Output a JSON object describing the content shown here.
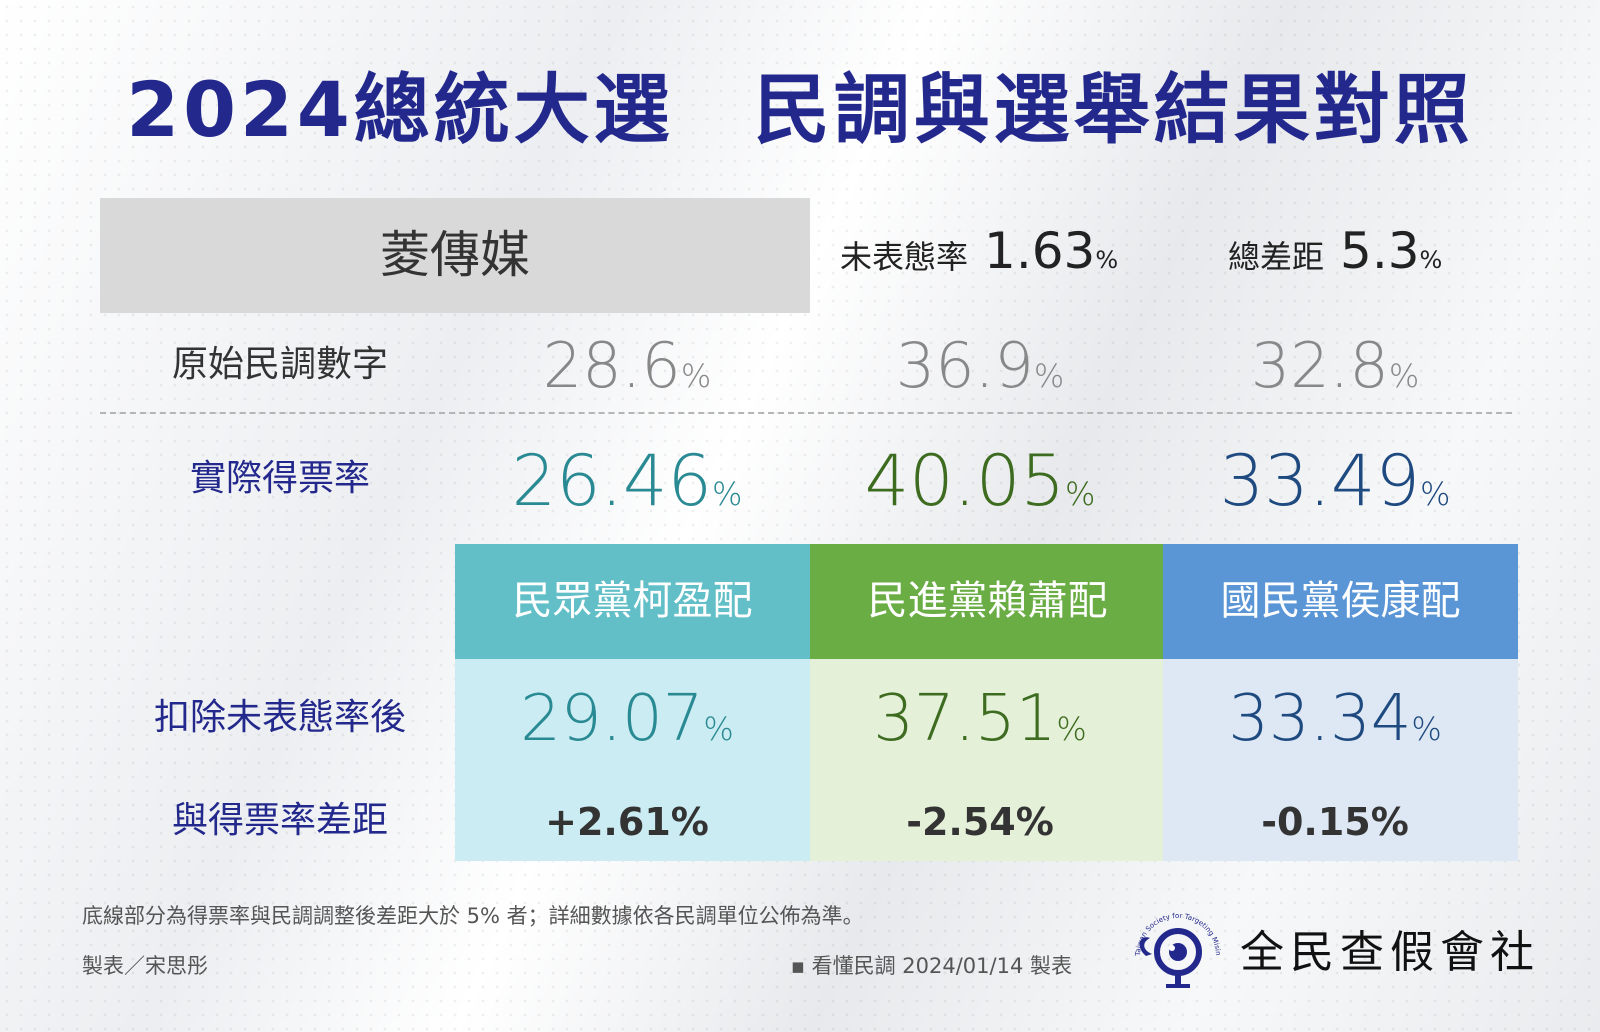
{
  "title": "2024總統大選　民調與選舉結果對照",
  "pollster": "菱傳媒",
  "undecided": {
    "label": "未表態率",
    "value": "1.63",
    "unit": "%"
  },
  "total_gap": {
    "label": "總差距",
    "value": "5.3",
    "unit": "%"
  },
  "colors": {
    "title": "#23288c",
    "tpp_header": "#62bfc7",
    "tpp_body": "#cbecf2",
    "tpp_text": "#2a8a93",
    "dpp_header": "#6aad45",
    "dpp_body": "#e4f0d8",
    "dpp_text": "#3d6b1f",
    "kmt_header": "#5a95d6",
    "kmt_body": "#dde8f4",
    "kmt_text": "#1f4a80"
  },
  "chart_data": {
    "type": "table",
    "title": "2024總統大選　民調與選舉結果對照",
    "row_labels": {
      "raw": "原始民調數字",
      "actual": "實際得票率",
      "adjusted": "扣除未表態率後",
      "difference": "與得票率差距"
    },
    "unit": "%",
    "candidates": [
      {
        "name": "民眾黨柯盈配",
        "raw": "28.6",
        "actual": "26.46",
        "adjusted": "29.07",
        "difference": "+2.61%"
      },
      {
        "name": "民進黨賴蕭配",
        "raw": "36.9",
        "actual": "40.05",
        "adjusted": "37.51",
        "difference": "-2.54%"
      },
      {
        "name": "國民黨侯康配",
        "raw": "32.8",
        "actual": "33.49",
        "adjusted": "33.34",
        "difference": "-0.15%"
      }
    ]
  },
  "footer": {
    "note": "底線部分為得票率與民調調整後差距大於 5% 者；詳細數據依各民調單位公佈為準。",
    "author": "製表／宋思彤",
    "source": "▪ 看懂民調 2024/01/14 製表",
    "logo_text": "全民查假會社",
    "logo_ring_text": "Taiwan Society for Targeting Misinformation"
  }
}
